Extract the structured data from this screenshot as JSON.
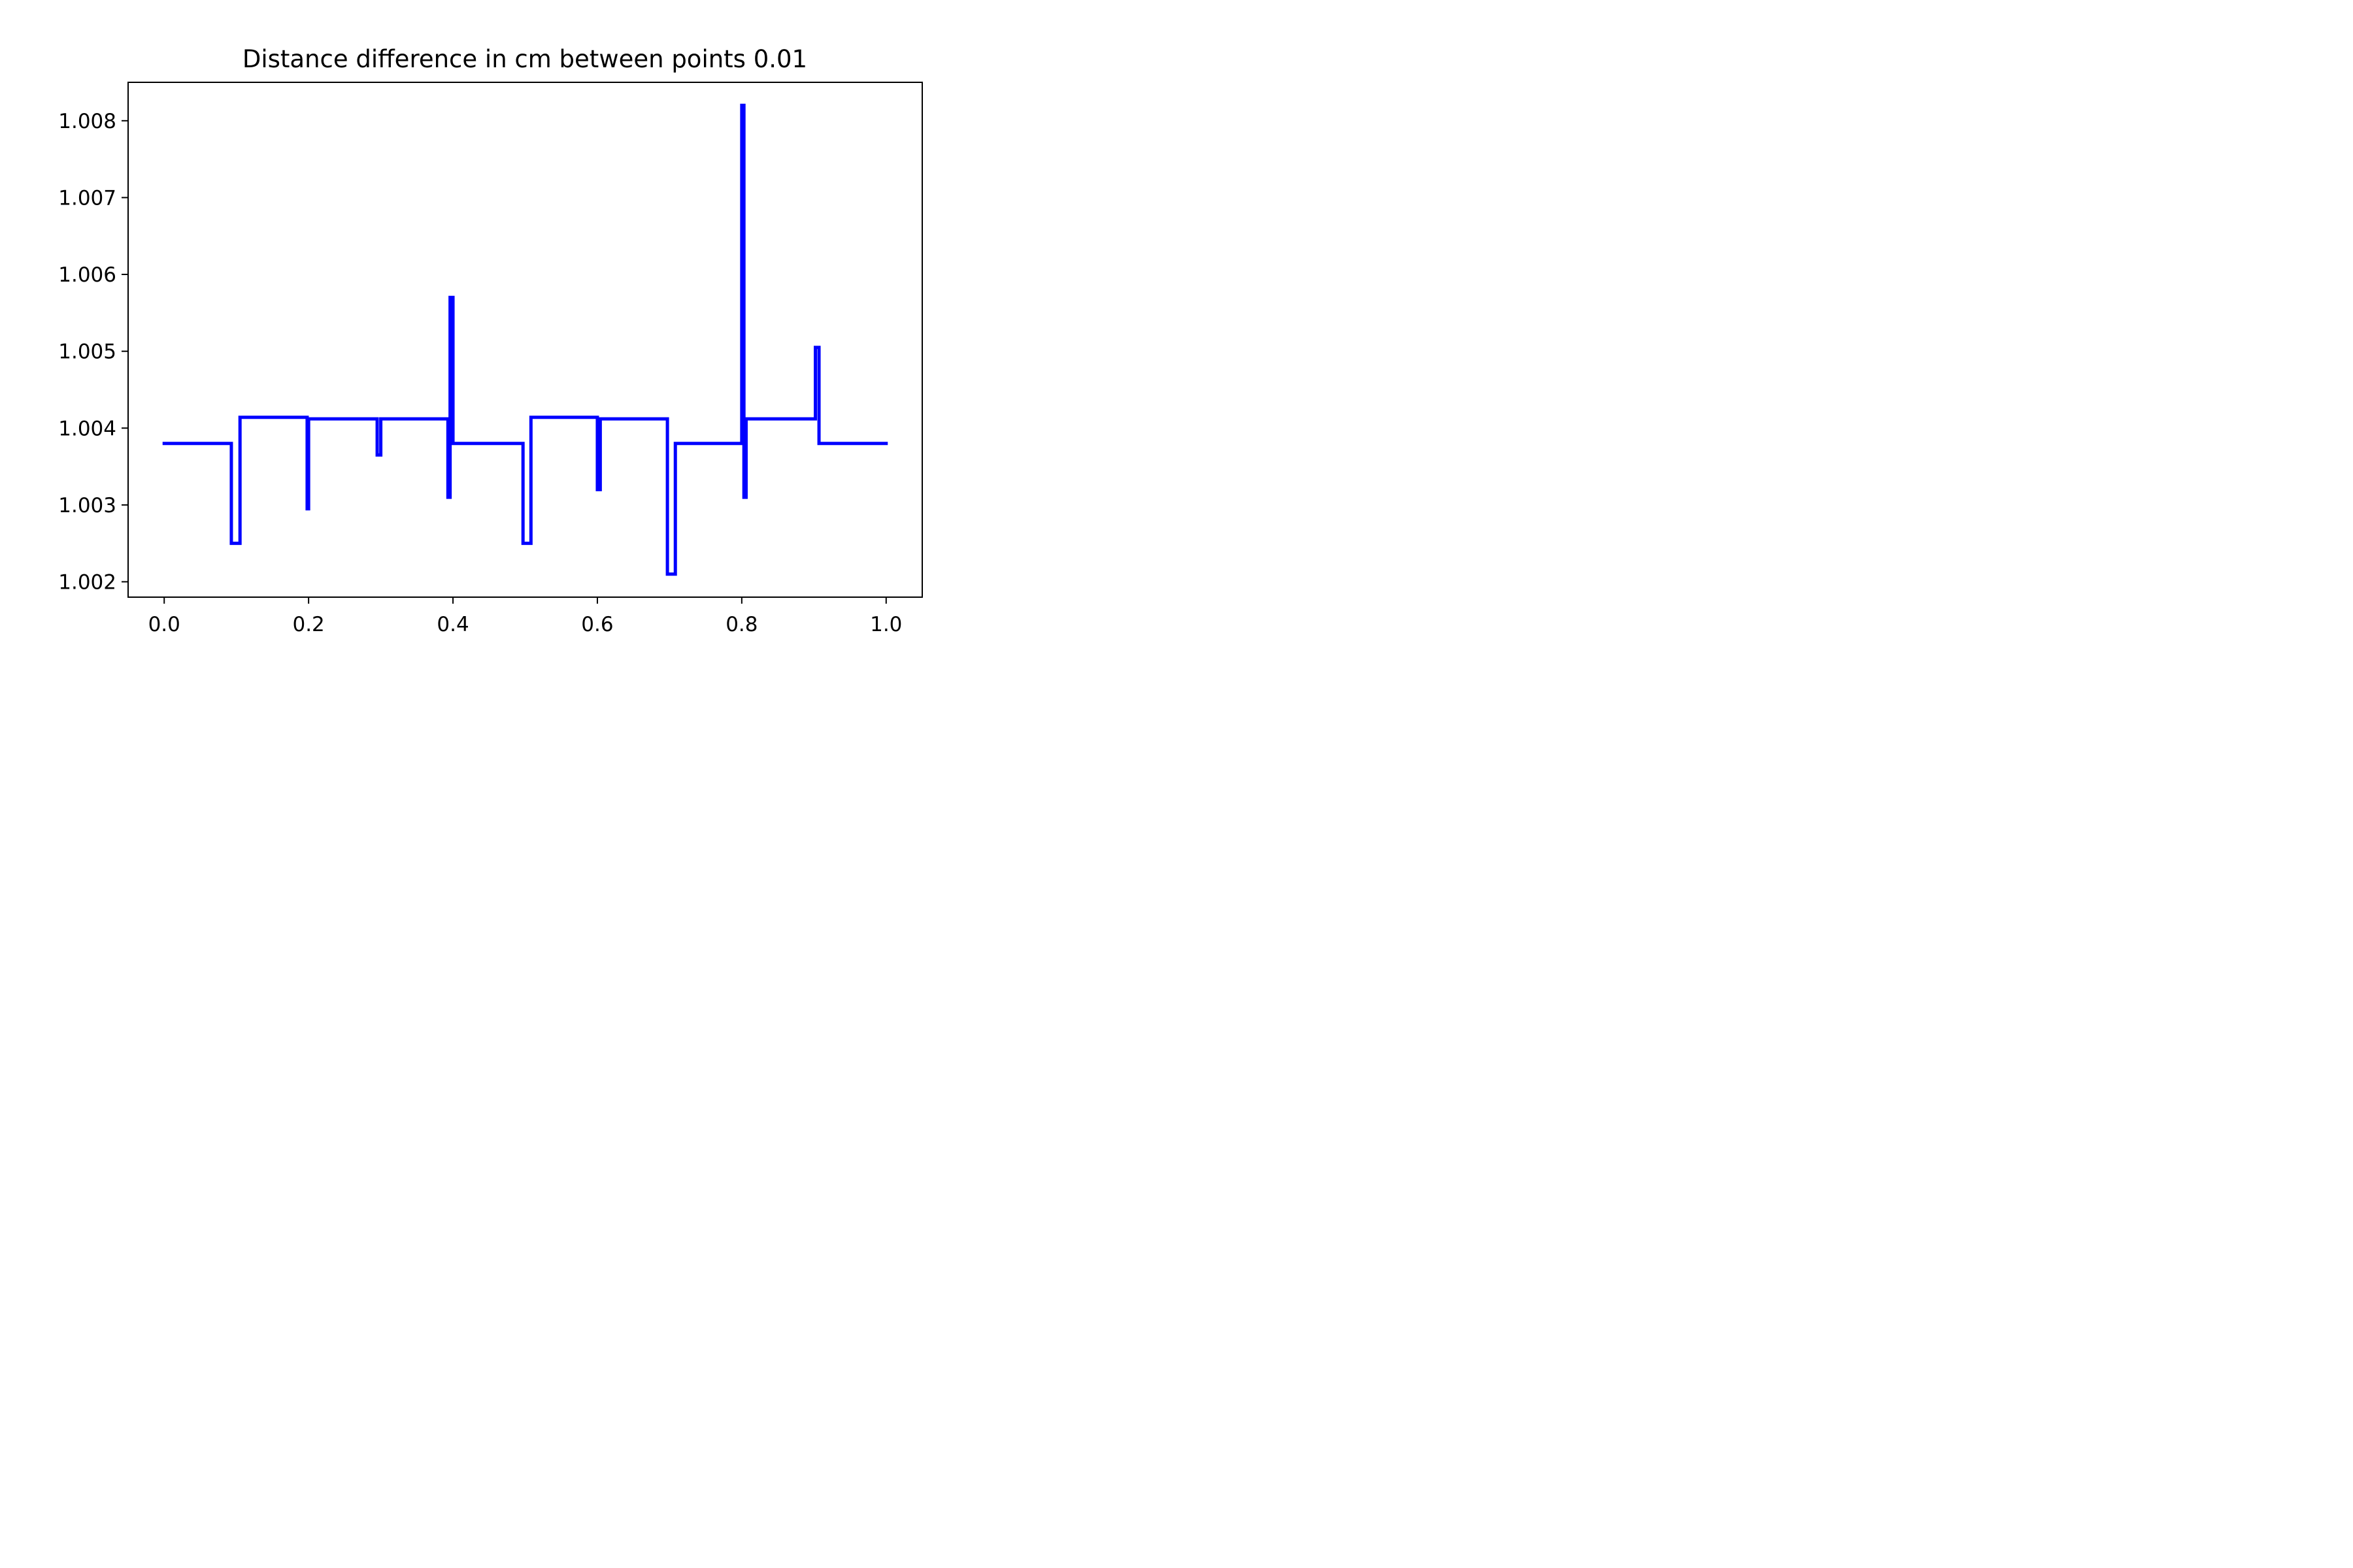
{
  "chart_data": {
    "type": "line",
    "title": "Distance difference in cm between points 0.01",
    "xlabel": "",
    "ylabel": "",
    "xlim": [
      -0.05,
      1.05
    ],
    "ylim": [
      1.0018,
      1.0085
    ],
    "x_ticks": [
      0.0,
      0.2,
      0.4,
      0.6,
      0.8,
      1.0
    ],
    "x_tick_labels": [
      "0.0",
      "0.2",
      "0.4",
      "0.6",
      "0.8",
      "1.0"
    ],
    "y_ticks": [
      1.002,
      1.003,
      1.004,
      1.005,
      1.006,
      1.007,
      1.008
    ],
    "y_tick_labels": [
      "1.002",
      "1.003",
      "1.004",
      "1.005",
      "1.006",
      "1.007",
      "1.008"
    ],
    "grid": false,
    "legend": "none",
    "series": [
      {
        "color": "#0000ff",
        "x": [
          0.0,
          0.093,
          0.093,
          0.105,
          0.105,
          0.198,
          0.198,
          0.2,
          0.2,
          0.203,
          0.203,
          0.295,
          0.295,
          0.3,
          0.3,
          0.393,
          0.393,
          0.396,
          0.396,
          0.4,
          0.4,
          0.403,
          0.403,
          0.497,
          0.497,
          0.508,
          0.508,
          0.6,
          0.6,
          0.604,
          0.604,
          0.697,
          0.697,
          0.708,
          0.708,
          0.8,
          0.8,
          0.803,
          0.803,
          0.806,
          0.806,
          0.81,
          0.81,
          0.902,
          0.902,
          0.907,
          0.907,
          1.0
        ],
        "y": [
          1.0038,
          1.0038,
          1.0025,
          1.0025,
          1.00414,
          1.00414,
          1.00295,
          1.00295,
          1.00412,
          1.00412,
          1.00412,
          1.00412,
          1.00365,
          1.00365,
          1.00412,
          1.00412,
          1.0031,
          1.0031,
          1.0057,
          1.0057,
          1.0038,
          1.0038,
          1.0038,
          1.0038,
          1.0025,
          1.0025,
          1.00414,
          1.00414,
          1.0032,
          1.0032,
          1.00412,
          1.00412,
          1.0021,
          1.0021,
          1.0038,
          1.0038,
          1.0082,
          1.0082,
          1.0031,
          1.0031,
          1.00412,
          1.00412,
          1.00412,
          1.00412,
          1.00505,
          1.00505,
          1.0038,
          1.0038
        ]
      }
    ]
  }
}
